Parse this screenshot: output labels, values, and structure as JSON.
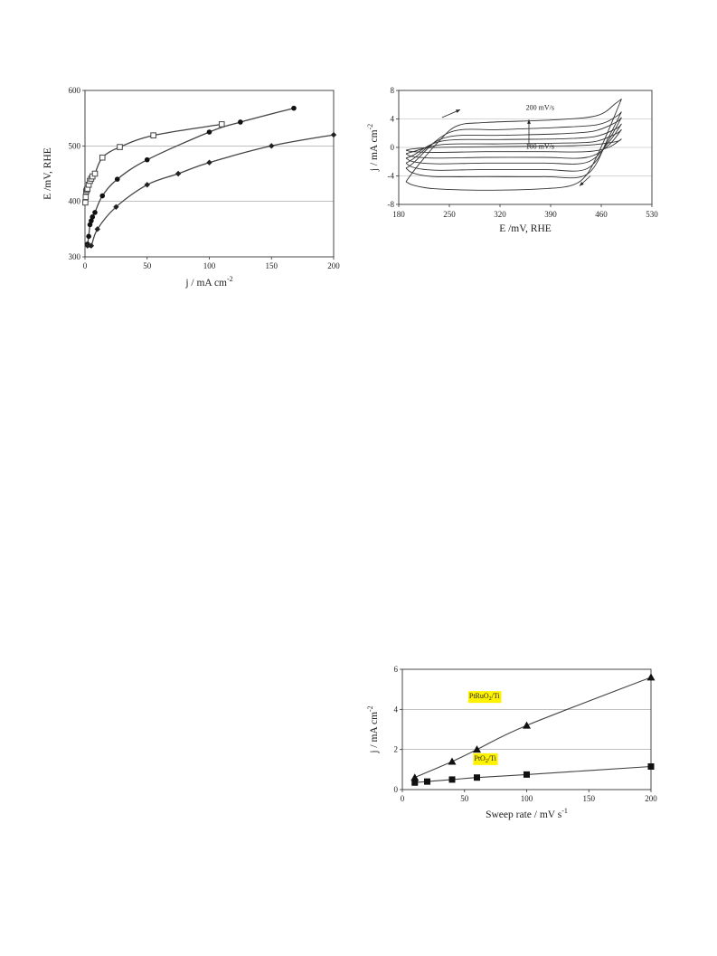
{
  "chart_data": [
    {
      "type": "line",
      "xlabel": "j / mA cm",
      "xlabel_sup": "-2",
      "ylabel": "E /mV, RHE",
      "xlim": [
        0,
        200
      ],
      "ylim": [
        300,
        600
      ],
      "xticks": [
        "0",
        "50",
        "100",
        "150",
        "200"
      ],
      "yticks": [
        "300",
        "400",
        "500",
        "600"
      ],
      "grid_y": [
        400,
        500
      ],
      "series": [
        {
          "marker": "square-open",
          "x": [
            0.3,
            0.6,
            1,
            1.5,
            2,
            3,
            4,
            5,
            6,
            8,
            14,
            28,
            55,
            110
          ],
          "y": [
            398,
            408,
            418,
            421,
            423,
            430,
            437,
            441,
            445,
            450,
            479,
            498,
            519,
            539
          ]
        },
        {
          "marker": "circle-filled",
          "x": [
            2,
            3,
            4,
            5,
            6,
            8,
            14,
            26,
            50,
            100,
            125,
            168
          ],
          "y": [
            323,
            337,
            358,
            365,
            372,
            380,
            410,
            440,
            475,
            525,
            543,
            568
          ]
        },
        {
          "marker": "diamond-filled",
          "x": [
            2,
            5,
            10,
            25,
            50,
            75,
            100,
            150,
            200
          ],
          "y": [
            320,
            320,
            350,
            390,
            430,
            450,
            470,
            500,
            520
          ]
        }
      ]
    },
    {
      "type": "line",
      "xlabel": "E /mV, RHE",
      "ylabel": "j / mA cm",
      "ylabel_sup": "-2",
      "xlim": [
        180,
        530
      ],
      "ylim": [
        -8,
        8
      ],
      "xticks": [
        "180",
        "250",
        "320",
        "390",
        "460",
        "530"
      ],
      "yticks": [
        "8",
        "4",
        "0",
        "-4",
        "-8"
      ],
      "grid_y": [
        4,
        0,
        -4
      ],
      "annotations": [
        "200 mV/s",
        "100 mV/s"
      ],
      "cycles": [
        {
          "anodic": [
            [
              190,
              -0.4
            ],
            [
              200,
              -0.2
            ],
            [
              230,
              0.0
            ],
            [
              300,
              0.1
            ],
            [
              390,
              0.2
            ],
            [
              440,
              0.3
            ],
            [
              480,
              0.8
            ],
            [
              488,
              1.2
            ]
          ],
          "cathodic": [
            [
              488,
              1.2
            ],
            [
              470,
              0.0
            ],
            [
              440,
              -0.6
            ],
            [
              380,
              -0.6
            ],
            [
              300,
              -0.6
            ],
            [
              230,
              -0.7
            ],
            [
              200,
              -0.6
            ],
            [
              190,
              -0.4
            ]
          ]
        },
        {
          "anodic": [
            [
              190,
              -0.9
            ],
            [
              200,
              -0.6
            ],
            [
              240,
              0.4
            ],
            [
              320,
              0.5
            ],
            [
              400,
              0.6
            ],
            [
              450,
              0.8
            ],
            [
              480,
              1.9
            ],
            [
              488,
              2.5
            ]
          ],
          "cathodic": [
            [
              488,
              2.5
            ],
            [
              470,
              0.3
            ],
            [
              440,
              -1.4
            ],
            [
              380,
              -1.4
            ],
            [
              300,
              -1.4
            ],
            [
              230,
              -1.5
            ],
            [
              200,
              -1.3
            ],
            [
              190,
              -0.9
            ]
          ]
        },
        {
          "anodic": [
            [
              190,
              -1.5
            ],
            [
              200,
              -1.1
            ],
            [
              240,
              0.9
            ],
            [
              320,
              1.1
            ],
            [
              400,
              1.2
            ],
            [
              450,
              1.5
            ],
            [
              480,
              2.6
            ],
            [
              488,
              3.3
            ]
          ],
          "cathodic": [
            [
              488,
              3.3
            ],
            [
              470,
              0.7
            ],
            [
              440,
              -2.1
            ],
            [
              380,
              -2.2
            ],
            [
              300,
              -2.2
            ],
            [
              230,
              -2.3
            ],
            [
              200,
              -2.0
            ],
            [
              190,
              -1.5
            ]
          ]
        },
        {
          "anodic": [
            [
              190,
              -2.2
            ],
            [
              200,
              -1.6
            ],
            [
              245,
              1.4
            ],
            [
              320,
              1.7
            ],
            [
              400,
              1.9
            ],
            [
              450,
              2.3
            ],
            [
              480,
              3.5
            ],
            [
              488,
              4.2
            ]
          ],
          "cathodic": [
            [
              488,
              4.2
            ],
            [
              470,
              1.0
            ],
            [
              440,
              -3.0
            ],
            [
              380,
              -3.1
            ],
            [
              300,
              -3.1
            ],
            [
              230,
              -3.2
            ],
            [
              200,
              -2.8
            ],
            [
              190,
              -2.2
            ]
          ]
        },
        {
          "anodic": [
            [
              190,
              -2.9
            ],
            [
              200,
              -2.2
            ],
            [
              250,
              2.1
            ],
            [
              320,
              2.5
            ],
            [
              400,
              2.8
            ],
            [
              455,
              3.2
            ],
            [
              480,
              4.3
            ],
            [
              488,
              5.0
            ]
          ],
          "cathodic": [
            [
              488,
              5.0
            ],
            [
              470,
              1.4
            ],
            [
              440,
              -3.8
            ],
            [
              380,
              -4.1
            ],
            [
              300,
              -4.1
            ],
            [
              230,
              -4.1
            ],
            [
              200,
              -3.6
            ],
            [
              190,
              -2.9
            ]
          ]
        },
        {
          "anodic": [
            [
              190,
              -4.8
            ],
            [
              200,
              -3.4
            ],
            [
              215,
              -1.5
            ],
            [
              235,
              0.8
            ],
            [
              260,
              3.0
            ],
            [
              300,
              3.5
            ],
            [
              400,
              3.9
            ],
            [
              455,
              4.5
            ],
            [
              480,
              6.2
            ],
            [
              488,
              6.8
            ]
          ],
          "cathodic": [
            [
              488,
              6.8
            ],
            [
              470,
              2.4
            ],
            [
              455,
              -1.0
            ],
            [
              440,
              -3.8
            ],
            [
              420,
              -5.3
            ],
            [
              380,
              -5.8
            ],
            [
              300,
              -6.0
            ],
            [
              230,
              -5.8
            ],
            [
              200,
              -5.3
            ],
            [
              190,
              -4.8
            ]
          ]
        }
      ]
    },
    {
      "type": "line",
      "xlabel": "Sweep rate / mV s",
      "xlabel_sup": "-1",
      "ylabel": "j / mA cm",
      "ylabel_sup": "-2",
      "xlim": [
        0,
        200
      ],
      "ylim": [
        0,
        6
      ],
      "xticks": [
        "0",
        "50",
        "100",
        "150",
        "200"
      ],
      "yticks": [
        "0",
        "2",
        "4",
        "6"
      ],
      "grid_y": [
        2,
        4
      ],
      "highlight_color": "#fff200",
      "series": [
        {
          "name": "PtRuO",
          "name_sub": "2",
          "name_tail": "/Ti",
          "marker": "triangle-filled",
          "x": [
            10,
            40,
            60,
            100,
            200
          ],
          "y": [
            0.6,
            1.4,
            2.0,
            3.2,
            5.6
          ]
        },
        {
          "name": "PtO",
          "name_sub": "2",
          "name_tail": "/Ti",
          "marker": "square-filled",
          "x": [
            10,
            20,
            40,
            60,
            100,
            200
          ],
          "y": [
            0.35,
            0.4,
            0.5,
            0.6,
            0.75,
            1.15
          ]
        }
      ]
    }
  ]
}
